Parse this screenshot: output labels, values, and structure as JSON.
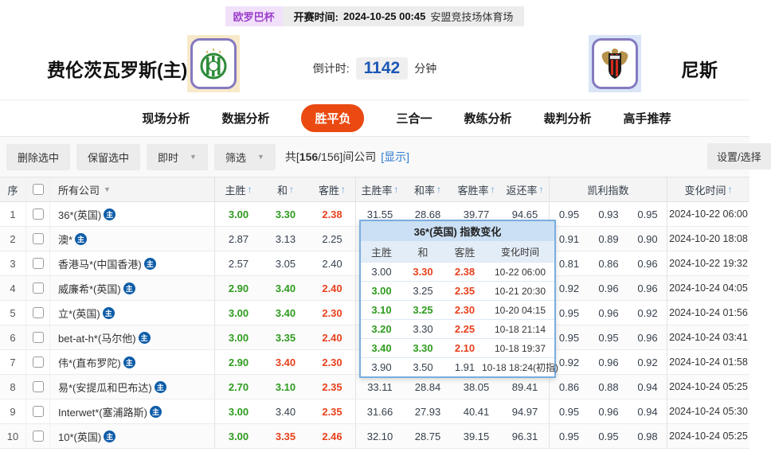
{
  "match": {
    "league": "欧罗巴杯",
    "kickoff_label": "开赛时间:",
    "kickoff_time": "2024-10-25 00:45",
    "venue": "安盟竞技场体育场",
    "home_team": "费伦茨瓦罗斯(主)",
    "away_team": "尼斯",
    "countdown_label": "倒计时:",
    "countdown_value": "1142",
    "countdown_unit": "分钟"
  },
  "tabs": [
    {
      "label": "现场分析",
      "active": false
    },
    {
      "label": "数据分析",
      "active": false
    },
    {
      "label": "胜平负",
      "active": true
    },
    {
      "label": "三合一",
      "active": false
    },
    {
      "label": "教练分析",
      "active": false
    },
    {
      "label": "裁判分析",
      "active": false
    },
    {
      "label": "高手推荐",
      "active": false
    }
  ],
  "toolbar": {
    "delete_selected": "删除选中",
    "keep_selected": "保留选中",
    "time_filter": "即时",
    "filter": "筛选",
    "count_prefix": "共[",
    "count_bold": "156",
    "count_suffix": "/156]间公司",
    "show_link": "[显示]",
    "settings": "设置/选择"
  },
  "table": {
    "header": {
      "no": "序",
      "company": "所有公司",
      "home": "主胜",
      "draw": "和",
      "away": "客胜",
      "home_rate": "主胜率",
      "draw_rate": "和率",
      "away_rate": "客胜率",
      "return_rate": "返还率",
      "kelly": "凯利指数",
      "change_time": "变化时间"
    },
    "rows": [
      {
        "no": "1",
        "company": "36*(英国)",
        "h": "3.00",
        "hc": "green",
        "d": "3.30",
        "dc": "green",
        "a": "2.38",
        "ac": "red",
        "hr": "31.55",
        "dr": "28.68",
        "ar": "39.77",
        "rr": "94.65",
        "k1": "0.95",
        "k2": "0.93",
        "k3": "0.95",
        "time": "2024-10-22 06:00"
      },
      {
        "no": "2",
        "company": "澳*",
        "h": "2.87",
        "hc": "dark",
        "d": "3.13",
        "dc": "dark",
        "a": "2.25",
        "ac": "dark",
        "hr": "",
        "dr": "",
        "ar": "",
        "rr": "",
        "k1": "0.91",
        "k2": "0.89",
        "k3": "0.90",
        "time": "2024-10-20 18:08"
      },
      {
        "no": "3",
        "company": "香港马*(中国香港)",
        "h": "2.57",
        "hc": "dark",
        "d": "3.05",
        "dc": "dark",
        "a": "2.40",
        "ac": "dark",
        "hr": "",
        "dr": "",
        "ar": "",
        "rr": "",
        "k1": "0.81",
        "k2": "0.86",
        "k3": "0.96",
        "time": "2024-10-22 19:32"
      },
      {
        "no": "4",
        "company": "威廉希*(英国)",
        "h": "2.90",
        "hc": "green",
        "d": "3.40",
        "dc": "green",
        "a": "2.40",
        "ac": "red",
        "hr": "",
        "dr": "",
        "ar": "",
        "rr": "",
        "k1": "0.92",
        "k2": "0.96",
        "k3": "0.96",
        "time": "2024-10-24 04:05"
      },
      {
        "no": "5",
        "company": "立*(英国)",
        "h": "3.00",
        "hc": "green",
        "d": "3.40",
        "dc": "green",
        "a": "2.30",
        "ac": "red",
        "hr": "",
        "dr": "",
        "ar": "",
        "rr": "",
        "k1": "0.95",
        "k2": "0.96",
        "k3": "0.92",
        "time": "2024-10-24 01:56"
      },
      {
        "no": "6",
        "company": "bet-at-h*(马尔他)",
        "h": "3.00",
        "hc": "green",
        "d": "3.35",
        "dc": "green",
        "a": "2.40",
        "ac": "red",
        "hr": "",
        "dr": "",
        "ar": "",
        "rr": "",
        "k1": "0.95",
        "k2": "0.95",
        "k3": "0.96",
        "time": "2024-10-24 03:41"
      },
      {
        "no": "7",
        "company": "伟*(直布罗陀)",
        "h": "2.90",
        "hc": "green",
        "d": "3.40",
        "dc": "red",
        "a": "2.30",
        "ac": "red",
        "hr": "",
        "dr": "",
        "ar": "",
        "rr": "",
        "k1": "0.92",
        "k2": "0.96",
        "k3": "0.92",
        "time": "2024-10-24 01:58"
      },
      {
        "no": "8",
        "company": "易*(安提瓜和巴布达)",
        "h": "2.70",
        "hc": "green",
        "d": "3.10",
        "dc": "green",
        "a": "2.35",
        "ac": "red",
        "hr": "33.11",
        "dr": "28.84",
        "ar": "38.05",
        "rr": "89.41",
        "k1": "0.86",
        "k2": "0.88",
        "k3": "0.94",
        "time": "2024-10-24 05:25"
      },
      {
        "no": "9",
        "company": "Interwet*(塞浦路斯)",
        "h": "3.00",
        "hc": "green",
        "d": "3.40",
        "dc": "dark",
        "a": "2.35",
        "ac": "red",
        "hr": "31.66",
        "dr": "27.93",
        "ar": "40.41",
        "rr": "94.97",
        "k1": "0.95",
        "k2": "0.96",
        "k3": "0.94",
        "time": "2024-10-24 05:30"
      },
      {
        "no": "10",
        "company": "10*(英国)",
        "h": "3.00",
        "hc": "green",
        "d": "3.35",
        "dc": "red",
        "a": "2.46",
        "ac": "red",
        "hr": "32.10",
        "dr": "28.75",
        "ar": "39.15",
        "rr": "96.31",
        "k1": "0.95",
        "k2": "0.95",
        "k3": "0.98",
        "time": "2024-10-24 05:25"
      }
    ]
  },
  "popup": {
    "title": "36*(英国) 指数变化",
    "headers": [
      "主胜",
      "和",
      "客胜",
      "变化时间"
    ],
    "rows": [
      {
        "h": "3.00",
        "hc": "dark",
        "d": "3.30",
        "dc": "red",
        "a": "2.38",
        "ac": "red",
        "time": "10-22 06:00"
      },
      {
        "h": "3.00",
        "hc": "green",
        "d": "3.25",
        "dc": "dark",
        "a": "2.35",
        "ac": "red",
        "time": "10-21 20:30"
      },
      {
        "h": "3.10",
        "hc": "green",
        "d": "3.25",
        "dc": "green",
        "a": "2.30",
        "ac": "red",
        "time": "10-20 04:15"
      },
      {
        "h": "3.20",
        "hc": "green",
        "d": "3.30",
        "dc": "dark",
        "a": "2.25",
        "ac": "red",
        "time": "10-18 21:14"
      },
      {
        "h": "3.40",
        "hc": "green",
        "d": "3.30",
        "dc": "green",
        "a": "2.10",
        "ac": "red",
        "time": "10-18 19:37"
      },
      {
        "h": "3.90",
        "hc": "dark",
        "d": "3.50",
        "dc": "dark",
        "a": "1.91",
        "ac": "dark",
        "time": "10-18 18:24(初指)"
      }
    ]
  },
  "icons": {
    "zhu_badge": "主",
    "sort_up": "↑",
    "caret_down": "▼"
  },
  "colors": {
    "accent_tab": "#ea4a12",
    "odds_up_green": "#2e9b1e",
    "odds_down_red": "#e8401c",
    "link_blue": "#2f7cd0",
    "countdown_blue": "#1b57b5",
    "popup_border": "#7aade0"
  }
}
